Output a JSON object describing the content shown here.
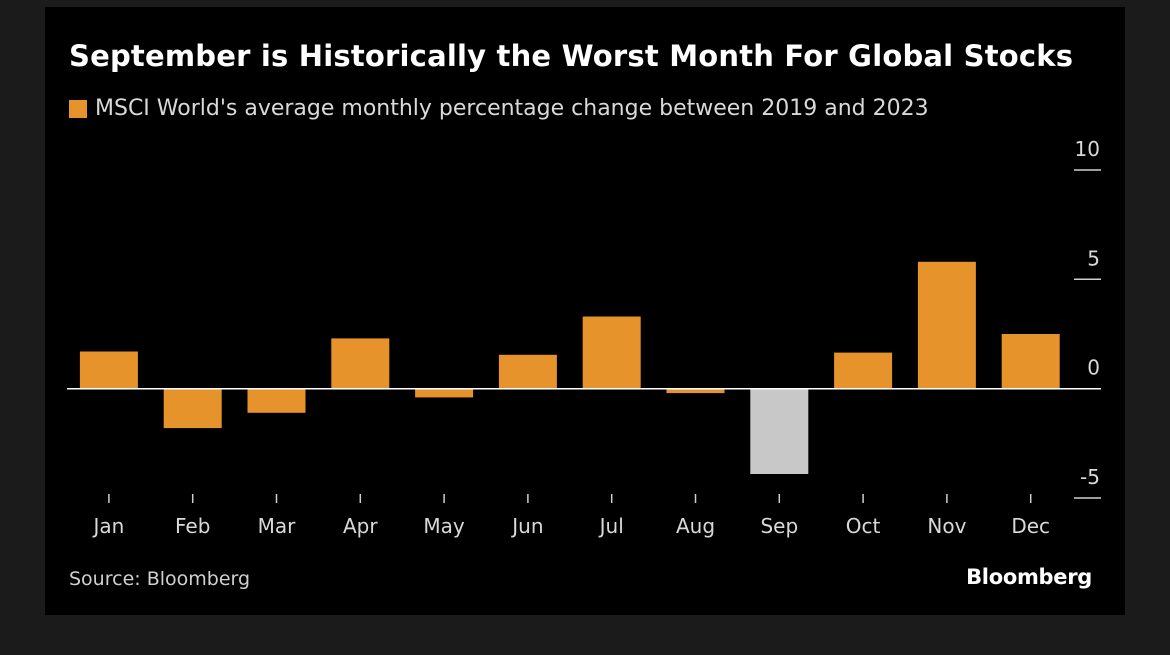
{
  "chart_data": {
    "type": "bar",
    "title": "September is Historically the Worst Month For Global Stocks",
    "legend": "MSCI World's average monthly percentage change between 2019 and 2023",
    "categories": [
      "Jan",
      "Feb",
      "Mar",
      "Apr",
      "May",
      "Jun",
      "Jul",
      "Aug",
      "Sep",
      "Oct",
      "Nov",
      "Dec"
    ],
    "series": [
      {
        "name": "MSCI World's average monthly percentage change between 2019 and 2023",
        "values": [
          1.7,
          -1.8,
          -1.1,
          2.3,
          -0.4,
          1.55,
          3.3,
          -0.2,
          -3.9,
          1.65,
          5.8,
          2.5
        ]
      }
    ],
    "highlight_category": "Sep",
    "ylim": [
      -5,
      10
    ],
    "yticks": [
      10,
      5,
      0,
      -5
    ],
    "y_axis_position": "right",
    "xlabel": "",
    "ylabel": "",
    "grid": false,
    "colors": {
      "bar": "#e5932a",
      "highlight": "#c8c8c8",
      "background": "#000000",
      "zero_line": "#ffffff",
      "text": "#d9d9d9"
    }
  },
  "footer": {
    "source": "Source: Bloomberg",
    "brand": "Bloomberg"
  }
}
